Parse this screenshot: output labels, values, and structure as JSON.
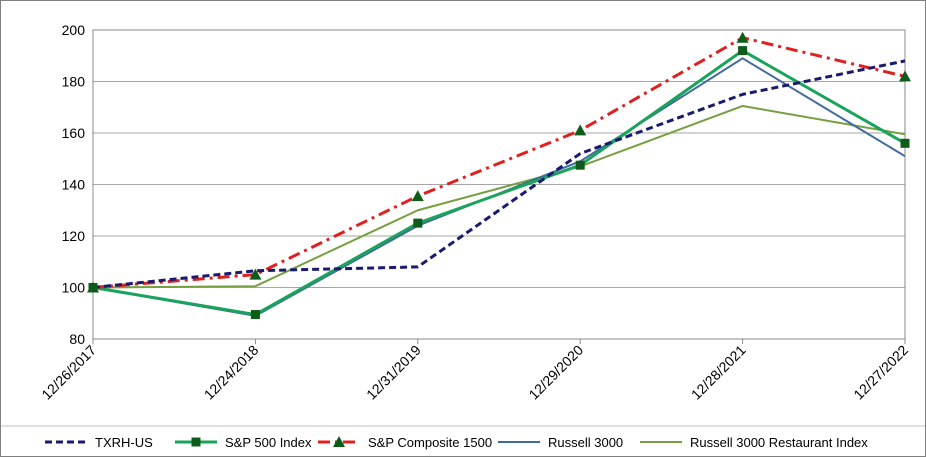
{
  "chart_data": {
    "type": "line",
    "categories": [
      "12/26/2017",
      "12/24/2018",
      "12/31/2019",
      "12/29/2020",
      "12/28/2021",
      "12/27/2022"
    ],
    "ylim": [
      80,
      200
    ],
    "yticks": [
      80,
      100,
      120,
      140,
      160,
      180,
      200
    ],
    "grid": "horizontal",
    "legend_position": "bottom",
    "series": [
      {
        "name": "TXRH-US",
        "values": [
          100,
          106.5,
          108,
          152,
          175,
          188
        ],
        "color": "#1a1a6e",
        "line_style": "dashed",
        "marker": "none"
      },
      {
        "name": "S&P 500 Index",
        "values": [
          100,
          89.5,
          125,
          147.5,
          192,
          156
        ],
        "color": "#1aa35a",
        "line_style": "solid",
        "marker": "square",
        "marker_color": "#0d5c1a"
      },
      {
        "name": "S&P Composite 1500",
        "values": [
          100,
          105,
          135.5,
          161,
          197,
          182
        ],
        "color": "#e02020",
        "line_style": "dash-dot",
        "marker": "triangle",
        "marker_color": "#0d5c1a"
      },
      {
        "name": "Russell 3000",
        "values": [
          100,
          89,
          124,
          149,
          189,
          151
        ],
        "color": "#3f6aa0",
        "line_style": "solid",
        "marker": "none"
      },
      {
        "name": "Russell 3000 Restaurant Index",
        "values": [
          100,
          100.5,
          130,
          147,
          170.5,
          159.5
        ],
        "color": "#76a040",
        "line_style": "solid",
        "marker": "none"
      }
    ]
  }
}
